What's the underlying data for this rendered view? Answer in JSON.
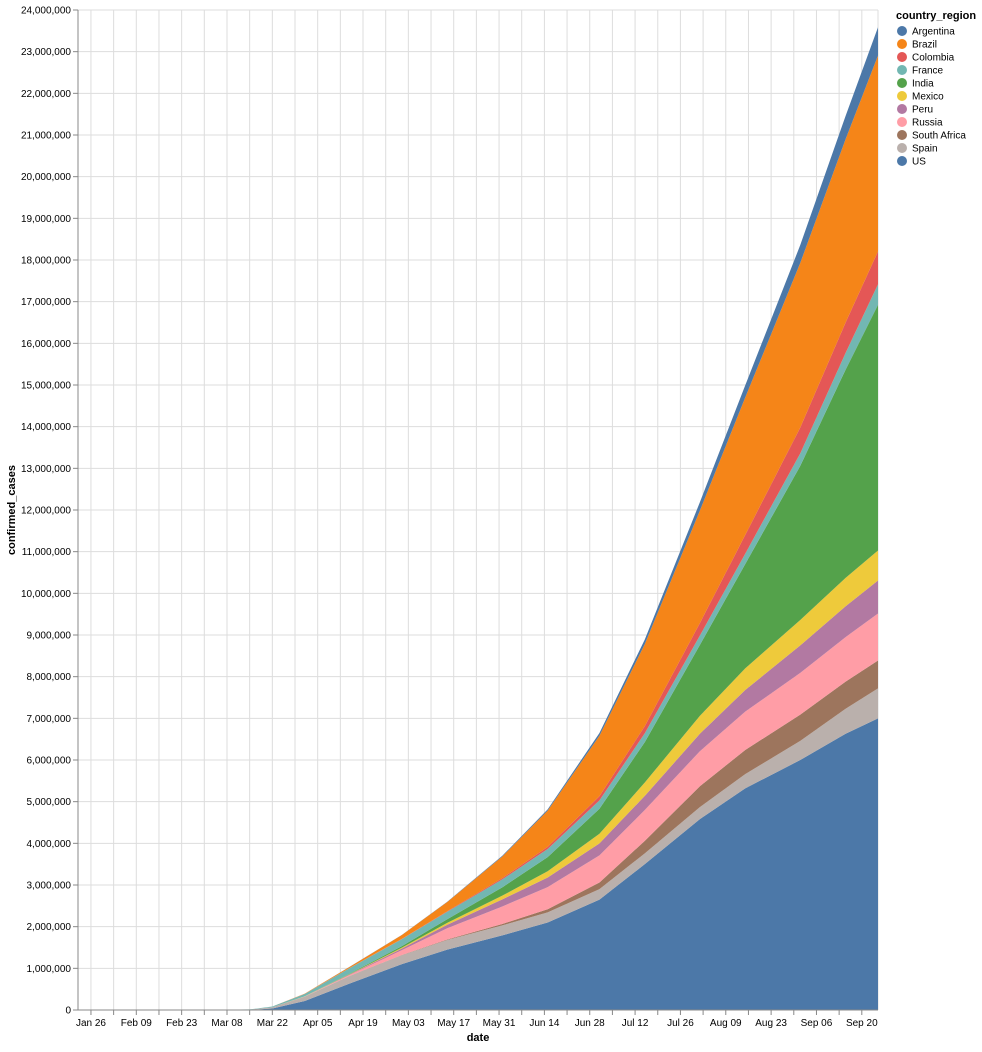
{
  "chart_data": {
    "type": "area",
    "stacked": true,
    "xlabel": "date",
    "ylabel": "confirmed_cases",
    "legend_title": "country_region",
    "legend_position": "right",
    "grid": true,
    "ylim": [
      0,
      24000000
    ],
    "x_ticks": [
      "Jan 26",
      "Feb 09",
      "Feb 23",
      "Mar 08",
      "Mar 22",
      "Apr 05",
      "Apr 19",
      "May 03",
      "May 17",
      "May 31",
      "Jun 14",
      "Jun 28",
      "Jul 12",
      "Jul 26",
      "Aug 09",
      "Aug 23",
      "Sep 06",
      "Sep 20"
    ],
    "y_ticks": [
      "0",
      "1,000,000",
      "2,000,000",
      "3,000,000",
      "4,000,000",
      "5,000,000",
      "6,000,000",
      "7,000,000",
      "8,000,000",
      "9,000,000",
      "10,000,000",
      "11,000,000",
      "12,000,000",
      "13,000,000",
      "14,000,000",
      "15,000,000",
      "16,000,000",
      "17,000,000",
      "18,000,000",
      "19,000,000",
      "20,000,000",
      "21,000,000",
      "22,000,000",
      "23,000,000",
      "24,000,000"
    ],
    "x": [
      "2020-01-22",
      "2020-02-01",
      "2020-02-15",
      "2020-03-01",
      "2020-03-15",
      "2020-03-22",
      "2020-04-01",
      "2020-04-15",
      "2020-05-01",
      "2020-05-15",
      "2020-06-01",
      "2020-06-15",
      "2020-07-01",
      "2020-07-15",
      "2020-08-01",
      "2020-08-15",
      "2020-09-01",
      "2020-09-15",
      "2020-09-25"
    ],
    "series": [
      {
        "name": "US",
        "color": "#4c78a8",
        "values": [
          0,
          0,
          0,
          0,
          3000,
          35000,
          215000,
          640000,
          1100000,
          1450000,
          1790000,
          2100000,
          2650000,
          3500000,
          4580000,
          5320000,
          6000000,
          6630000,
          7000000
        ]
      },
      {
        "name": "Spain",
        "color": "#bab0ac",
        "values": [
          0,
          0,
          0,
          0,
          7000,
          30000,
          105000,
          180000,
          215000,
          230000,
          240000,
          244000,
          250000,
          260000,
          290000,
          340000,
          460000,
          600000,
          720000
        ]
      },
      {
        "name": "South Africa",
        "color": "#9d755d",
        "values": [
          0,
          0,
          0,
          0,
          0,
          300,
          1400,
          2600,
          6000,
          12000,
          34000,
          75000,
          160000,
          300000,
          500000,
          580000,
          630000,
          650000,
          667000
        ]
      },
      {
        "name": "Russia",
        "color": "#ff9da6",
        "values": [
          0,
          0,
          0,
          0,
          60,
          400,
          2800,
          24000,
          115000,
          270000,
          420000,
          530000,
          650000,
          740000,
          840000,
          920000,
          1000000,
          1070000,
          1130000
        ]
      },
      {
        "name": "Peru",
        "color": "#b279a2",
        "values": [
          0,
          0,
          0,
          0,
          0,
          360,
          1300,
          11000,
          40000,
          85000,
          170000,
          230000,
          290000,
          340000,
          420000,
          520000,
          660000,
          740000,
          790000
        ]
      },
      {
        "name": "Mexico",
        "color": "#eeca3b",
        "values": [
          0,
          0,
          0,
          0,
          40,
          250,
          1200,
          5800,
          20000,
          45000,
          90000,
          150000,
          230000,
          320000,
          430000,
          520000,
          610000,
          680000,
          720000
        ]
      },
      {
        "name": "India",
        "color": "#54a24b",
        "values": [
          0,
          0,
          0,
          0,
          110,
          400,
          1800,
          12000,
          37000,
          85000,
          200000,
          340000,
          600000,
          970000,
          1700000,
          2500000,
          3700000,
          5000000,
          5900000
        ]
      },
      {
        "name": "France",
        "color": "#72b7b2",
        "values": [
          0,
          0,
          0,
          0,
          4500,
          16000,
          57000,
          135000,
          168000,
          180000,
          190000,
          195000,
          202000,
          212000,
          225000,
          250000,
          300000,
          400000,
          490000
        ]
      },
      {
        "name": "Colombia",
        "color": "#e45756",
        "values": [
          0,
          0,
          0,
          0,
          30,
          230,
          1100,
          3100,
          7000,
          14000,
          30000,
          50000,
          100000,
          170000,
          300000,
          450000,
          620000,
          730000,
          790000
        ]
      },
      {
        "name": "Brazil",
        "color": "#f58518",
        "values": [
          0,
          0,
          0,
          0,
          200,
          1500,
          6800,
          28000,
          92000,
          220000,
          520000,
          870000,
          1450000,
          1970000,
          2700000,
          3300000,
          3950000,
          4400000,
          4700000
        ]
      },
      {
        "name": "Argentina",
        "color": "#4c78a8",
        "values": [
          0,
          0,
          0,
          0,
          50,
          250,
          1000,
          2400,
          4400,
          7800,
          17000,
          30000,
          65000,
          110000,
          200000,
          290000,
          430000,
          560000,
          680000
        ]
      }
    ]
  }
}
